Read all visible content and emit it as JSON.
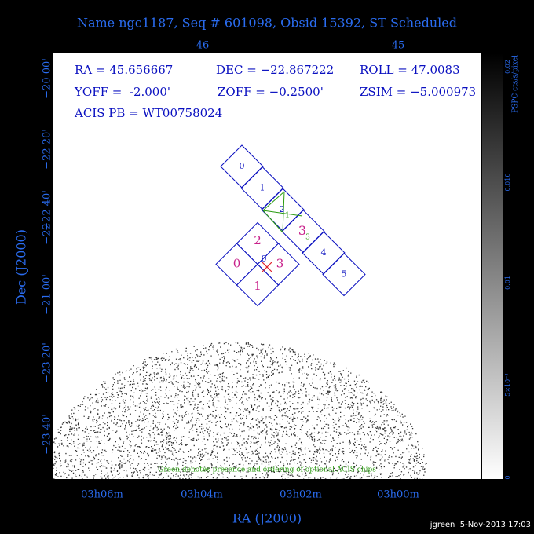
{
  "header": {
    "title": "Name ngc1187, Seq # 601098, Obsid 15392, ST Scheduled"
  },
  "top_ticks": [
    "46",
    "45"
  ],
  "info": [
    "RA = 45.656667",
    "DEC = −22.867222",
    "ROLL = 47.0083",
    "YOFF =  -2.000'",
    "ZOFF = −0.2500'",
    "ZSIM = −5.000973",
    "ACIS PB = WT00758024"
  ],
  "y_ticks": [
    "−20 00'",
    "−22 20'",
    "−22 40'",
    "−22",
    "−21 00'",
    "−23 20'",
    "−23 40'"
  ],
  "y_label": "Dec (J2000)",
  "x_ticks": [
    "03h06m",
    "03h04m",
    "03h02m",
    "03h00m"
  ],
  "x_label": "RA (J2000)",
  "colorbar": {
    "title": "PSPC cts/s/pixel",
    "labels": [
      "0.02",
      "0.016",
      "0.01",
      "5×10⁻³",
      "0"
    ]
  },
  "acis_s_chips": [
    "0",
    "1",
    "2",
    "3",
    "4",
    "5"
  ],
  "acis_i_chips": [
    "2",
    "0",
    "3",
    "1"
  ],
  "optional_chips": [
    "1",
    "3"
  ],
  "aimpoint_label": "0",
  "note": "Green denotes presence and ordering of optional ACIS chips",
  "footer": "jgreen  5-Nov-2013 17:03"
}
